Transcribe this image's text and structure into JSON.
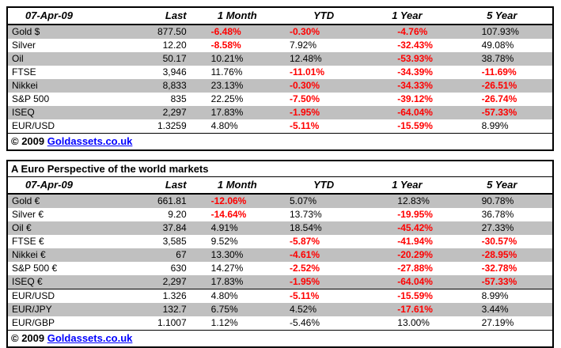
{
  "colors": {
    "negative_red": "#FF0000",
    "row_stripe_gray": "#C0C0C0",
    "link_blue": "#0000FF",
    "border_black": "#000000",
    "background_white": "#FFFFFF"
  },
  "chart_data": [
    {
      "type": "table",
      "title": "",
      "date": "07-Apr-09",
      "columns": [
        "Last",
        "1 Month",
        "YTD",
        "1 Year",
        "5 Year"
      ],
      "separator_before_row": null,
      "rows": [
        {
          "label": "Gold $",
          "last": "877.50",
          "pcts": [
            {
              "v": "-6.48%",
              "red": true
            },
            {
              "v": "-0.30%",
              "red": true
            },
            {
              "v": "-4.76%",
              "red": true
            },
            {
              "v": "107.93%",
              "red": false
            }
          ]
        },
        {
          "label": "Silver",
          "last": "12.20",
          "pcts": [
            {
              "v": "-8.58%",
              "red": true
            },
            {
              "v": "7.92%",
              "red": false
            },
            {
              "v": "-32.43%",
              "red": true
            },
            {
              "v": "49.08%",
              "red": false
            }
          ]
        },
        {
          "label": "Oil",
          "last": "50.17",
          "pcts": [
            {
              "v": "10.21%",
              "red": false
            },
            {
              "v": "12.48%",
              "red": false
            },
            {
              "v": "-53.93%",
              "red": true
            },
            {
              "v": "38.78%",
              "red": false
            }
          ]
        },
        {
          "label": "FTSE",
          "last": "3,946",
          "pcts": [
            {
              "v": "11.76%",
              "red": false
            },
            {
              "v": "-11.01%",
              "red": true
            },
            {
              "v": "-34.39%",
              "red": true
            },
            {
              "v": "-11.69%",
              "red": true
            }
          ]
        },
        {
          "label": "Nikkei",
          "last": "8,833",
          "pcts": [
            {
              "v": "23.13%",
              "red": false
            },
            {
              "v": "-0.30%",
              "red": true
            },
            {
              "v": "-34.33%",
              "red": true
            },
            {
              "v": "-26.51%",
              "red": true
            }
          ]
        },
        {
          "label": "S&P 500",
          "last": "835",
          "pcts": [
            {
              "v": "22.25%",
              "red": false
            },
            {
              "v": "-7.50%",
              "red": true
            },
            {
              "v": "-39.12%",
              "red": true
            },
            {
              "v": "-26.74%",
              "red": true
            }
          ]
        },
        {
          "label": "ISEQ",
          "last": "2,297",
          "pcts": [
            {
              "v": "17.83%",
              "red": false
            },
            {
              "v": "-1.95%",
              "red": true
            },
            {
              "v": "-64.04%",
              "red": true
            },
            {
              "v": "-57.33%",
              "red": true
            }
          ]
        },
        {
          "label": "EUR/USD",
          "last": "1.3259",
          "pcts": [
            {
              "v": "4.80%",
              "red": false
            },
            {
              "v": "-5.11%",
              "red": true
            },
            {
              "v": "-15.59%",
              "red": true
            },
            {
              "v": "8.99%",
              "red": false
            }
          ]
        }
      ],
      "footer": {
        "copyright": "© 2009",
        "link": "Goldassets.co.uk"
      }
    },
    {
      "type": "table",
      "title": "A Euro Perspective of the world markets",
      "date": "07-Apr-09",
      "columns": [
        "Last",
        "1 Month",
        "YTD",
        "1 Year",
        "5 Year"
      ],
      "separator_before_row": 7,
      "rows": [
        {
          "label": "Gold €",
          "last": "661.81",
          "pcts": [
            {
              "v": "-12.06%",
              "red": true
            },
            {
              "v": "5.07%",
              "red": false
            },
            {
              "v": "12.83%",
              "red": false
            },
            {
              "v": "90.78%",
              "red": false
            }
          ]
        },
        {
          "label": "Silver €",
          "last": "9.20",
          "pcts": [
            {
              "v": "-14.64%",
              "red": true
            },
            {
              "v": "13.73%",
              "red": false
            },
            {
              "v": "-19.95%",
              "red": true
            },
            {
              "v": "36.78%",
              "red": false
            }
          ]
        },
        {
          "label": "Oil €",
          "last": "37.84",
          "pcts": [
            {
              "v": "4.91%",
              "red": false
            },
            {
              "v": "18.54%",
              "red": false
            },
            {
              "v": "-45.42%",
              "red": true
            },
            {
              "v": "27.33%",
              "red": false
            }
          ]
        },
        {
          "label": "FTSE €",
          "last": "3,585",
          "pcts": [
            {
              "v": "9.52%",
              "red": false
            },
            {
              "v": "-5.87%",
              "red": true
            },
            {
              "v": "-41.94%",
              "red": true
            },
            {
              "v": "-30.57%",
              "red": true
            }
          ]
        },
        {
          "label": "Nikkei €",
          "last": "67",
          "pcts": [
            {
              "v": "13.30%",
              "red": false
            },
            {
              "v": "-4.61%",
              "red": true
            },
            {
              "v": "-20.29%",
              "red": true
            },
            {
              "v": "-28.95%",
              "red": true
            }
          ]
        },
        {
          "label": "S&P 500 €",
          "last": "630",
          "pcts": [
            {
              "v": "14.27%",
              "red": false
            },
            {
              "v": "-2.52%",
              "red": true
            },
            {
              "v": "-27.88%",
              "red": true
            },
            {
              "v": "-32.78%",
              "red": true
            }
          ]
        },
        {
          "label": "ISEQ €",
          "last": "2,297",
          "pcts": [
            {
              "v": "17.83%",
              "red": false
            },
            {
              "v": "-1.95%",
              "red": true
            },
            {
              "v": "-64.04%",
              "red": true
            },
            {
              "v": "-57.33%",
              "red": true
            }
          ]
        },
        {
          "label": "EUR/USD",
          "last": "1.326",
          "pcts": [
            {
              "v": "4.80%",
              "red": false
            },
            {
              "v": "-5.11%",
              "red": true
            },
            {
              "v": "-15.59%",
              "red": true
            },
            {
              "v": "8.99%",
              "red": false
            }
          ]
        },
        {
          "label": "EUR/JPY",
          "last": "132.7",
          "pcts": [
            {
              "v": "6.75%",
              "red": false
            },
            {
              "v": "4.52%",
              "red": false
            },
            {
              "v": "-17.61%",
              "red": true
            },
            {
              "v": "3.44%",
              "red": false
            }
          ]
        },
        {
          "label": "EUR/GBP",
          "last": "1.1007",
          "pcts": [
            {
              "v": "1.12%",
              "red": false
            },
            {
              "v": "-5.46%",
              "red": false
            },
            {
              "v": "13.00%",
              "red": false
            },
            {
              "v": "27.19%",
              "red": false
            }
          ]
        }
      ],
      "footer": {
        "copyright": "© 2009",
        "link": "Goldassets.co.uk"
      }
    }
  ]
}
